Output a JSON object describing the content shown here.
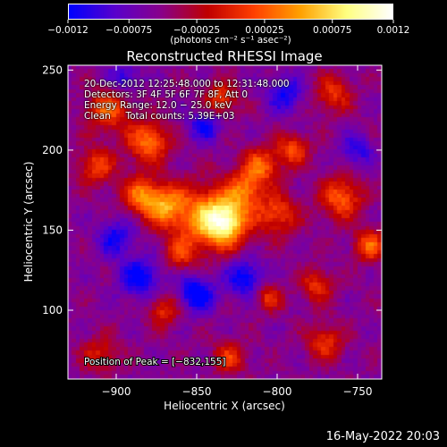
{
  "chart_data": {
    "type": "heatmap",
    "title": "Reconstructed RHESSI Image",
    "xlabel": "Heliocentric X (arcsec)",
    "ylabel": "Heliocentric Y (arcsec)",
    "xlim": [
      -930,
      -735
    ],
    "ylim": [
      57,
      253
    ],
    "x_ticks": [
      -900,
      -850,
      -800,
      -750
    ],
    "x_tick_labels": [
      "−900",
      "−850",
      "−800",
      "−750"
    ],
    "y_ticks": [
      100,
      150,
      200,
      250
    ],
    "y_tick_labels": [
      "100",
      "150",
      "200",
      "250"
    ],
    "colorbar": {
      "range": [
        -0.0012,
        0.0012
      ],
      "ticks": [
        -0.0012,
        -0.00075,
        -0.00025,
        0.00025,
        0.00075,
        0.0012
      ],
      "tick_labels": [
        "−0.0012",
        "−0.00075",
        "−0.00025",
        "0.00025",
        "0.00075",
        "0.0012"
      ],
      "units_label": "(photons cm⁻² s⁻¹ asec⁻²)",
      "colormap": [
        "#0000ff",
        "#5a00cc",
        "#8a008a",
        "#c00000",
        "#ff4000",
        "#ffa000",
        "#ffff80",
        "#ffffff"
      ]
    },
    "sources": [
      {
        "x": -832,
        "y": 155,
        "amp": 0.0012,
        "sigma": 10
      },
      {
        "x": -845,
        "y": 158,
        "amp": 0.00085,
        "sigma": 14
      },
      {
        "x": -870,
        "y": 165,
        "amp": 0.0009,
        "sigma": 9
      },
      {
        "x": -885,
        "y": 172,
        "amp": 0.0008,
        "sigma": 8
      },
      {
        "x": -880,
        "y": 205,
        "amp": 0.0009,
        "sigma": 9
      },
      {
        "x": -905,
        "y": 225,
        "amp": 0.0008,
        "sigma": 9
      },
      {
        "x": -912,
        "y": 190,
        "amp": 0.0007,
        "sigma": 8
      },
      {
        "x": -810,
        "y": 190,
        "amp": 0.0008,
        "sigma": 8
      },
      {
        "x": -790,
        "y": 200,
        "amp": 0.0007,
        "sigma": 7
      },
      {
        "x": -820,
        "y": 175,
        "amp": 0.00075,
        "sigma": 8
      },
      {
        "x": -800,
        "y": 160,
        "amp": 0.0007,
        "sigma": 9
      },
      {
        "x": -760,
        "y": 170,
        "amp": 0.0008,
        "sigma": 9
      },
      {
        "x": -742,
        "y": 140,
        "amp": 0.0008,
        "sigma": 7
      },
      {
        "x": -765,
        "y": 235,
        "amp": 0.0006,
        "sigma": 8
      },
      {
        "x": -835,
        "y": 232,
        "amp": 0.0007,
        "sigma": 7
      },
      {
        "x": -775,
        "y": 115,
        "amp": 0.0006,
        "sigma": 7
      },
      {
        "x": -770,
        "y": 80,
        "amp": 0.0006,
        "sigma": 8
      },
      {
        "x": -805,
        "y": 108,
        "amp": 0.0006,
        "sigma": 6
      },
      {
        "x": -870,
        "y": 100,
        "amp": 0.0006,
        "sigma": 7
      },
      {
        "x": -910,
        "y": 72,
        "amp": 0.0005,
        "sigma": 8
      },
      {
        "x": -830,
        "y": 70,
        "amp": 0.0006,
        "sigma": 7
      },
      {
        "x": -860,
        "y": 135,
        "amp": 0.00055,
        "sigma": 7
      },
      {
        "x": -850,
        "y": 110,
        "amp": -0.0008,
        "sigma": 8
      },
      {
        "x": -885,
        "y": 120,
        "amp": -0.0007,
        "sigma": 9
      },
      {
        "x": -820,
        "y": 120,
        "amp": -0.0007,
        "sigma": 8
      },
      {
        "x": -845,
        "y": 215,
        "amp": -0.0006,
        "sigma": 7
      },
      {
        "x": -795,
        "y": 235,
        "amp": -0.0006,
        "sigma": 8
      },
      {
        "x": -895,
        "y": 245,
        "amp": -0.0005,
        "sigma": 7
      },
      {
        "x": -900,
        "y": 145,
        "amp": -0.0006,
        "sigma": 8
      },
      {
        "x": -750,
        "y": 200,
        "amp": -0.0005,
        "sigma": 7
      }
    ],
    "peak_annotation": "Position of Peak = [−832,155]"
  },
  "header_info": {
    "time_range": "20-Dec-2012 12:25:48.000 to 12:31:48.000",
    "detectors": "Detectors: 3F 4F 5F 6F 7F 8F, Att 0",
    "energy_range": "Energy Range: 12.0 − 25.0 keV",
    "method_counts": "Clean     Total counts: 5.39E+03"
  },
  "footer_timestamp": "16-May-2022 20:03"
}
